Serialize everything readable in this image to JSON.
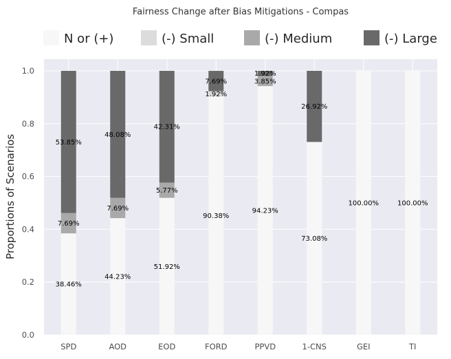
{
  "chart_data": {
    "type": "bar",
    "stacked": true,
    "title": "Fairness Change after Bias Mitigations - Compas",
    "xlabel": "",
    "ylabel": "Proportions of Scenarios",
    "ylim": [
      0,
      1.05
    ],
    "yticks": [
      "0.0",
      "0.2",
      "0.4",
      "0.6",
      "0.8",
      "1.0"
    ],
    "ytick_values": [
      0.0,
      0.2,
      0.4,
      0.6,
      0.8,
      1.0
    ],
    "grid": true,
    "legend_position": "top",
    "categories": [
      "SPD",
      "AOD",
      "EOD",
      "FORD",
      "PPVD",
      "1-CNS",
      "GEI",
      "TI"
    ],
    "series": [
      {
        "name": "N or (+)",
        "color": "#f7f7f7",
        "values": [
          0.3846,
          0.4423,
          0.5192,
          0.9038,
          0.9423,
          0.7308,
          1.0,
          1.0
        ],
        "labels": [
          "38.46%",
          "44.23%",
          "51.92%",
          "90.38%",
          "94.23%",
          "73.08%",
          "100.00%",
          "100.00%"
        ]
      },
      {
        "name": "(-) Small",
        "color": "#dcdcdc",
        "values": [
          0.0,
          0.0,
          0.0,
          0.0192,
          0.0,
          0.0,
          0.0,
          0.0
        ],
        "labels": [
          "",
          "",
          "",
          "1.92%",
          "",
          "",
          "",
          ""
        ]
      },
      {
        "name": "(-) Medium",
        "color": "#a9a9a9",
        "values": [
          0.0769,
          0.0769,
          0.0577,
          0.0,
          0.0385,
          0.0,
          0.0,
          0.0
        ],
        "labels": [
          "7.69%",
          "7.69%",
          "5.77%",
          "",
          "3.85%",
          "",
          "",
          ""
        ]
      },
      {
        "name": "(-) Large",
        "color": "#696969",
        "values": [
          0.5385,
          0.4808,
          0.4231,
          0.0769,
          0.0192,
          0.2692,
          0.0,
          0.0
        ],
        "labels": [
          "53.85%",
          "48.08%",
          "42.31%",
          "7.69%",
          "1.92%",
          "26.92%",
          "",
          ""
        ]
      }
    ],
    "background_color": "#eaeaf2",
    "grid_color": "#ffffff"
  }
}
